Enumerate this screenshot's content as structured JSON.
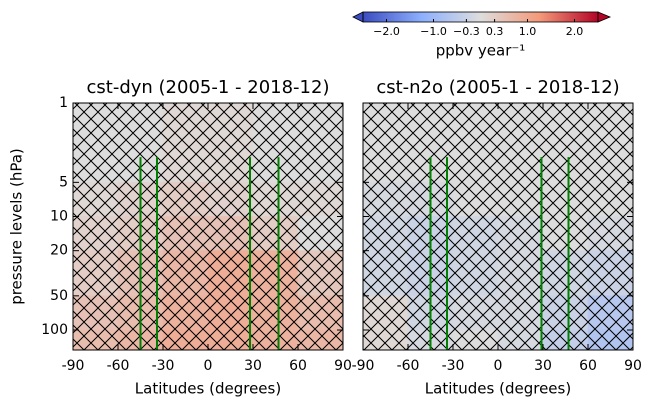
{
  "colorbar": {
    "label": "ppbv year⁻¹",
    "clim": [
      -2.5,
      2.5
    ],
    "colormap": [
      "#3b4cc0",
      "#8db0fe",
      "#dddddd",
      "#f49a7b",
      "#b40426"
    ],
    "ticks": [
      {
        "value": -2,
        "label": "−2.0"
      },
      {
        "value": -1,
        "label": "−1.0"
      },
      {
        "value": -0.3,
        "label": "−0.3"
      },
      0.3,
      {
        "value": 1,
        "label": "1.0"
      },
      {
        "value": 2,
        "label": "2.0"
      }
    ]
  },
  "chart_data": [
    {
      "type": "contour",
      "title": "cst-dyn (2005-1 - 2018-12)",
      "xlabel": "Latitudes (degrees)",
      "ylabel": "pressure levels (hPa)",
      "xlim": [
        -90,
        90
      ],
      "xticks": [
        -90,
        -60,
        -30,
        0,
        30,
        60,
        90
      ],
      "ylim": [
        150,
        1
      ],
      "yticks": [
        1,
        5,
        10,
        20,
        50,
        100
      ],
      "yscale": "log",
      "show_yticklabels": true,
      "xedges": [
        -90,
        -60,
        -30,
        0,
        30,
        60,
        90
      ],
      "yedges": [
        1,
        5,
        10,
        20,
        50,
        100,
        150
      ],
      "z": [
        [
          0,
          0,
          0.1,
          0.1,
          0,
          0
        ],
        [
          0.1,
          0.2,
          0.3,
          0.2,
          0.1,
          0.1
        ],
        [
          0.2,
          0.3,
          0.5,
          0.5,
          0.3,
          0
        ],
        [
          0.3,
          0.5,
          0.7,
          0.9,
          0.8,
          0.4
        ],
        [
          0.5,
          0.6,
          0.8,
          0.9,
          0.8,
          0.6
        ],
        [
          0.6,
          0.7,
          0.9,
          0.9,
          0.8,
          0.7
        ]
      ],
      "hatch": true,
      "vlines": [
        -45,
        -34,
        28,
        47
      ],
      "vline_top": 3,
      "vline_color": "#008000"
    },
    {
      "type": "contour",
      "title": "cst-n2o (2005-1 - 2018-12)",
      "xlabel": "Latitudes (degrees)",
      "xlim": [
        -90,
        90
      ],
      "xticks": [
        -90,
        -60,
        -30,
        0,
        30,
        60,
        90
      ],
      "ylim": [
        150,
        1
      ],
      "yticks": [
        1,
        5,
        10,
        20,
        50,
        100
      ],
      "yscale": "log",
      "show_yticklabels": false,
      "xedges": [
        -90,
        -60,
        -30,
        0,
        30,
        60,
        90
      ],
      "yedges": [
        1,
        5,
        10,
        20,
        50,
        100,
        150
      ],
      "z": [
        [
          0,
          0,
          0,
          0,
          0,
          0
        ],
        [
          -0.1,
          -0.1,
          0,
          0,
          0,
          0
        ],
        [
          -0.2,
          -0.3,
          -0.2,
          -0.1,
          0,
          -0.1
        ],
        [
          -0.2,
          -0.3,
          -0.2,
          -0.1,
          -0.2,
          -0.3
        ],
        [
          0.1,
          -0.2,
          -0.1,
          -0.1,
          -0.3,
          -0.6
        ],
        [
          0.1,
          -0.1,
          0,
          -0.1,
          -0.4,
          -0.7
        ]
      ],
      "hatch": true,
      "vlines": [
        -45,
        -34,
        29,
        47
      ],
      "vline_top": 3,
      "vline_color": "#008000"
    }
  ]
}
